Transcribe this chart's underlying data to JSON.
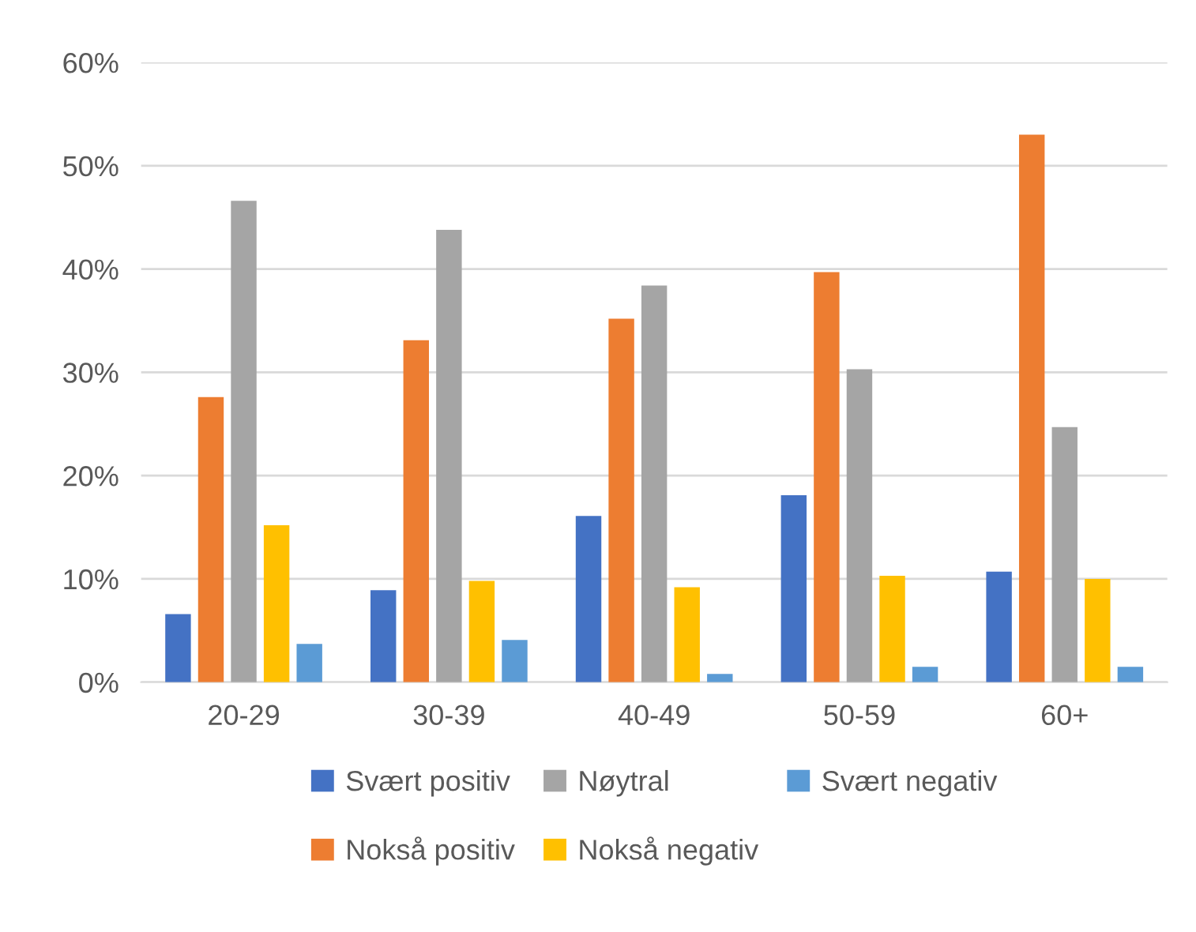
{
  "chart_data": {
    "type": "bar",
    "categories": [
      "20-29",
      "30-39",
      "40-49",
      "50-59",
      "60+"
    ],
    "series": [
      {
        "name": "Svært positiv",
        "color": "#4472c4",
        "values": [
          6.6,
          8.9,
          16.1,
          18.1,
          10.7
        ]
      },
      {
        "name": "Nokså positiv",
        "color": "#ed7d31",
        "values": [
          27.6,
          33.1,
          35.2,
          39.7,
          53.0
        ]
      },
      {
        "name": "Nøytral",
        "color": "#a5a5a5",
        "values": [
          46.6,
          43.8,
          38.4,
          30.3,
          24.7
        ]
      },
      {
        "name": "Nokså negativ",
        "color": "#ffc000",
        "values": [
          15.2,
          9.8,
          9.2,
          10.3,
          10.0
        ]
      },
      {
        "name": "Svært negativ",
        "color": "#5b9bd5",
        "values": [
          3.7,
          4.1,
          0.8,
          1.5,
          1.5
        ]
      }
    ],
    "ylim": [
      0,
      60
    ],
    "yticks": [
      {
        "value": 0,
        "label": "0%"
      },
      {
        "value": 10,
        "label": "10%"
      },
      {
        "value": 20,
        "label": "20%"
      },
      {
        "value": 30,
        "label": "30%"
      },
      {
        "value": 40,
        "label": "40%"
      },
      {
        "value": 50,
        "label": "50%"
      },
      {
        "value": 60,
        "label": "60%"
      }
    ],
    "grid": "y",
    "legend": "bottom"
  }
}
